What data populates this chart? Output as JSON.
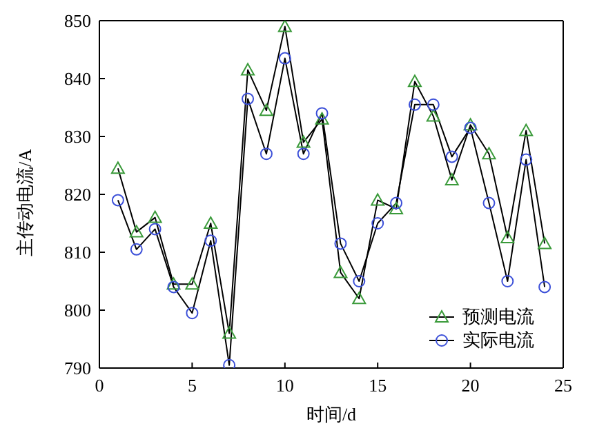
{
  "chart_data": {
    "type": "line",
    "xlabel": "时间/d",
    "ylabel": "主传动电流/A",
    "x": [
      1,
      2,
      3,
      4,
      5,
      6,
      7,
      8,
      9,
      10,
      11,
      12,
      13,
      14,
      15,
      16,
      17,
      18,
      19,
      20,
      21,
      22,
      23,
      24
    ],
    "series": [
      {
        "name": "预测电流",
        "color": "#3a9a3a",
        "marker": "triangle",
        "values": [
          824.5,
          813.5,
          816,
          804.5,
          804.5,
          815,
          796,
          841.5,
          834.5,
          849,
          829,
          833,
          806.5,
          802,
          819,
          817.5,
          839.5,
          833.5,
          822.5,
          832,
          827,
          812.5,
          831,
          811.5
        ]
      },
      {
        "name": "实际电流",
        "color": "#3b4fd8",
        "marker": "circle",
        "values": [
          819,
          810.5,
          814,
          804,
          799.5,
          812,
          790.5,
          836.5,
          827,
          843.5,
          827,
          834,
          811.5,
          805,
          815,
          818.5,
          835.5,
          835.5,
          826.5,
          831.5,
          818.5,
          805,
          826,
          804
        ]
      }
    ],
    "xlim": [
      0,
      25
    ],
    "xticks": [
      0,
      5,
      10,
      15,
      20,
      25
    ],
    "ylim": [
      790,
      850
    ],
    "yticks": [
      790,
      800,
      810,
      820,
      830,
      840,
      850
    ],
    "grid": false,
    "legend": "bottom right",
    "line_style": "solid"
  }
}
